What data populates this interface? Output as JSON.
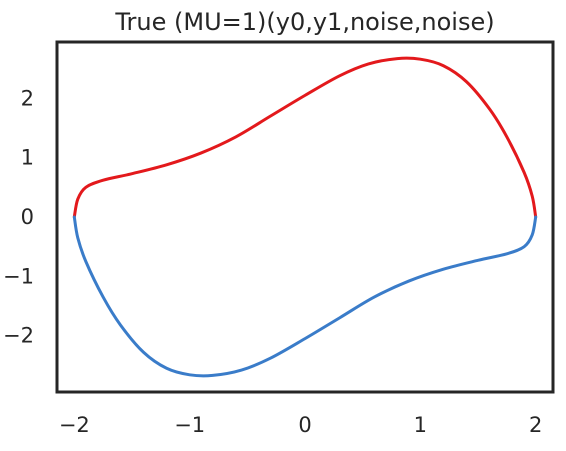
{
  "chart_data": {
    "type": "line",
    "title": "True (MU=1)(y0,y1,noise,noise)",
    "xlabel": "",
    "ylabel": "",
    "xlim": [
      -2.15,
      2.15
    ],
    "ylim": [
      -2.95,
      2.95
    ],
    "xticks": [
      -2,
      -1,
      0,
      1,
      2
    ],
    "xtick_labels": [
      "−2",
      "−1",
      "0",
      "1",
      "2"
    ],
    "yticks": [
      -2,
      -1,
      0,
      1,
      2
    ],
    "ytick_labels": [
      "−2",
      "−1",
      "0",
      "1",
      "2"
    ],
    "grid": false,
    "legend": "none",
    "series": [
      {
        "color": "#e3191c",
        "x": [
          -2.0,
          -1.97,
          -1.9,
          -1.75,
          -1.5,
          -1.2,
          -0.9,
          -0.6,
          -0.3,
          0.0,
          0.3,
          0.55,
          0.8,
          1.0,
          1.2,
          1.4,
          1.6,
          1.75,
          1.9,
          1.97,
          2.0
        ],
        "y": [
          0.0,
          0.3,
          0.5,
          0.62,
          0.73,
          0.88,
          1.08,
          1.35,
          1.7,
          2.05,
          2.38,
          2.58,
          2.67,
          2.66,
          2.55,
          2.28,
          1.82,
          1.35,
          0.75,
          0.35,
          0.0
        ]
      },
      {
        "color": "#3a7cc9",
        "x": [
          2.0,
          1.97,
          1.9,
          1.75,
          1.5,
          1.2,
          0.9,
          0.6,
          0.3,
          0.0,
          -0.3,
          -0.55,
          -0.8,
          -1.0,
          -1.2,
          -1.4,
          -1.6,
          -1.75,
          -1.9,
          -1.97,
          -2.0
        ],
        "y": [
          0.0,
          -0.3,
          -0.5,
          -0.62,
          -0.73,
          -0.88,
          -1.08,
          -1.35,
          -1.7,
          -2.05,
          -2.38,
          -2.58,
          -2.67,
          -2.66,
          -2.55,
          -2.28,
          -1.82,
          -1.35,
          -0.75,
          -0.35,
          0.0
        ]
      }
    ]
  }
}
